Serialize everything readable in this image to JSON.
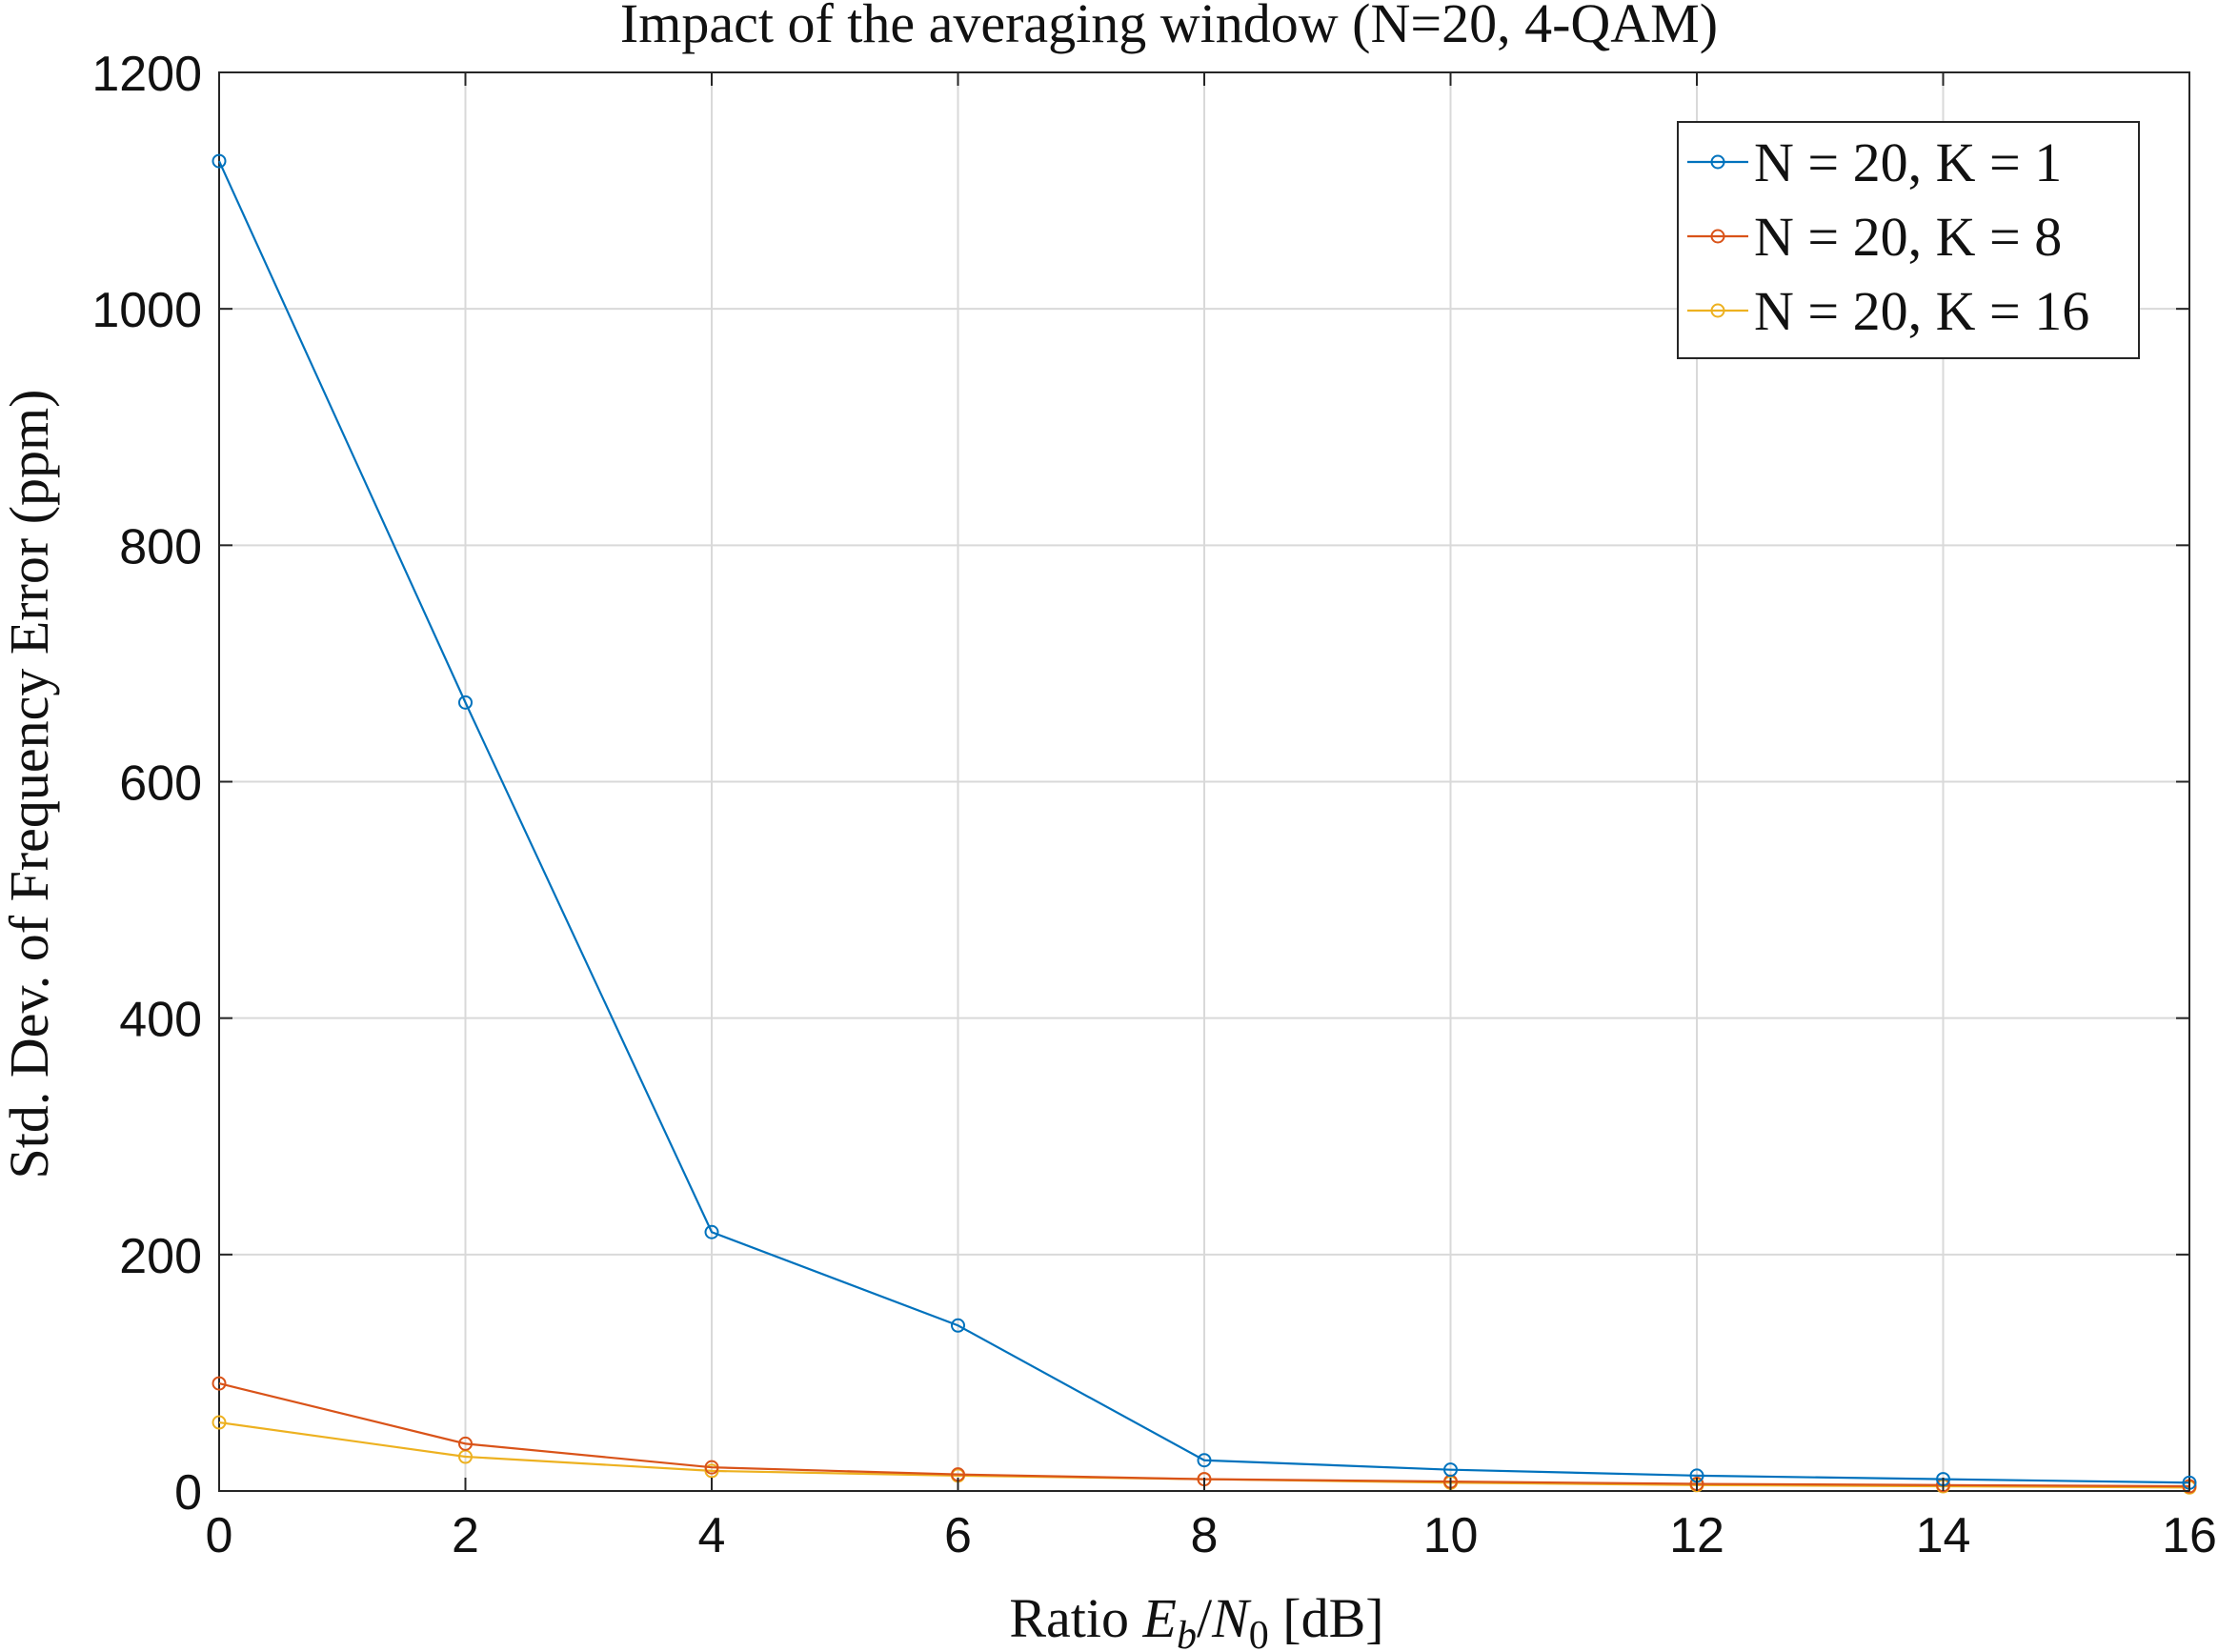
{
  "chart_data": {
    "type": "line",
    "title": "Impact of the averaging window (N=20, 4-QAM)",
    "xlabel": {
      "prefix": "Ratio ",
      "E": "E",
      "E_sub": "b",
      "sep": "/",
      "N": "N",
      "N_sub": "0",
      "suffix": " [dB]"
    },
    "ylabel": "Std. Dev. of Frequency Error (ppm)",
    "xlim": [
      0,
      16
    ],
    "ylim": [
      0,
      1200
    ],
    "xticks": [
      0,
      2,
      4,
      6,
      8,
      10,
      12,
      14,
      16
    ],
    "yticks": [
      0,
      200,
      400,
      600,
      800,
      1000,
      1200
    ],
    "grid": true,
    "legend_position": "top-right",
    "x": [
      0,
      2,
      4,
      6,
      8,
      10,
      12,
      14,
      16
    ],
    "series": [
      {
        "name": "N = 20, K = 1",
        "color": "#0072BD",
        "values": [
          1125,
          667,
          219,
          140,
          26,
          18,
          13,
          10,
          7
        ]
      },
      {
        "name": "N = 20, K = 8",
        "color": "#D95319",
        "values": [
          91,
          40,
          20,
          14,
          10,
          8,
          6,
          5,
          4
        ]
      },
      {
        "name": "N = 20, K = 16",
        "color": "#EDB120",
        "values": [
          58,
          29,
          17,
          13,
          10,
          7,
          5,
          4,
          3
        ]
      }
    ]
  }
}
